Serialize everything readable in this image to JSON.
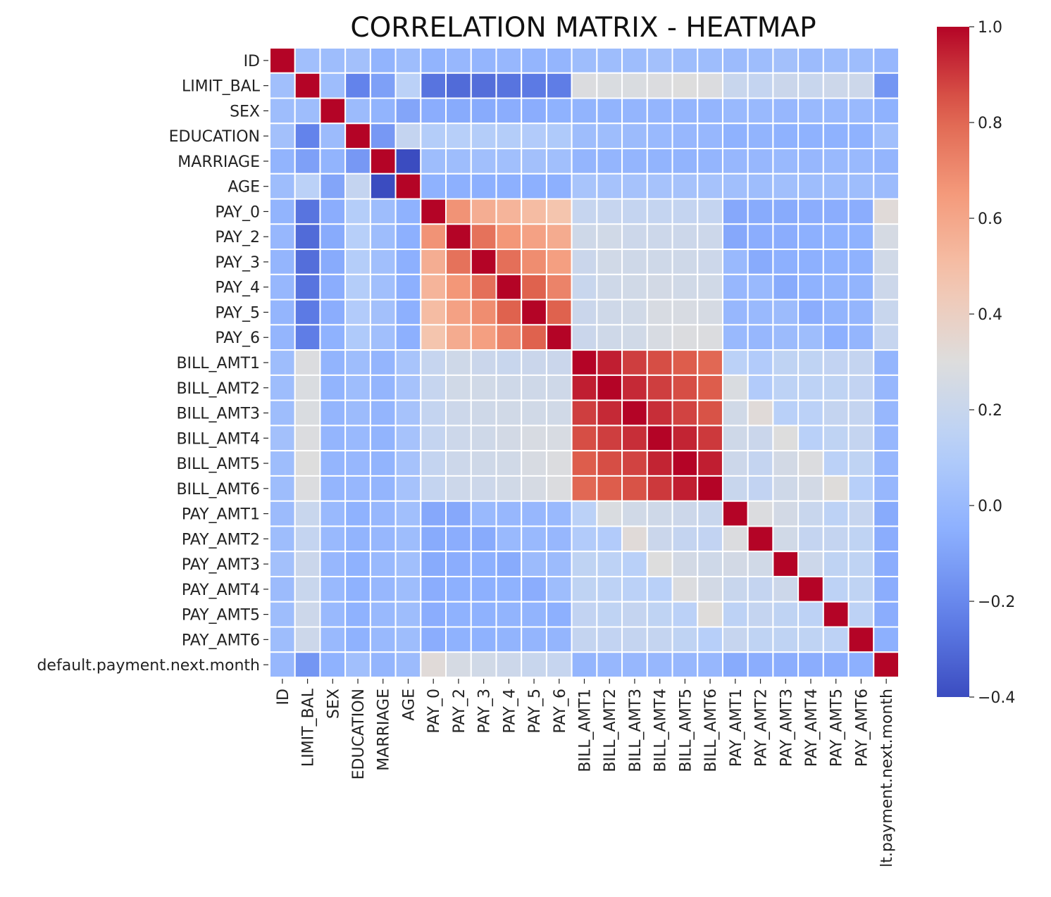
{
  "chart_data": {
    "type": "heatmap",
    "title": "CORRELATION MATRIX - HEATMAP",
    "colormap": "coolwarm",
    "labels": [
      "ID",
      "LIMIT_BAL",
      "SEX",
      "EDUCATION",
      "MARRIAGE",
      "AGE",
      "PAY_0",
      "PAY_2",
      "PAY_3",
      "PAY_4",
      "PAY_5",
      "PAY_6",
      "BILL_AMT1",
      "BILL_AMT2",
      "BILL_AMT3",
      "BILL_AMT4",
      "BILL_AMT5",
      "BILL_AMT6",
      "PAY_AMT1",
      "PAY_AMT2",
      "PAY_AMT3",
      "PAY_AMT4",
      "PAY_AMT5",
      "PAY_AMT6",
      "default.payment.next.month"
    ],
    "x_tick_labels_visible": [
      "ID",
      "LIMIT_BAL",
      "SEX",
      "EDUCATION",
      "MARRIAGE",
      "AGE",
      "PAY_0",
      "PAY_2",
      "PAY_3",
      "PAY_4",
      "PAY_5",
      "PAY_6",
      "BILL_AMT1",
      "BILL_AMT2",
      "BILL_AMT3",
      "BILL_AMT4",
      "BILL_AMT5",
      "BILL_AMT6",
      "PAY_AMT1",
      "PAY_AMT2",
      "PAY_AMT3",
      "PAY_AMT4",
      "PAY_AMT5",
      "PAY_AMT6",
      "lt.payment.next.month"
    ],
    "vmin": -0.4,
    "vmax": 1.0,
    "colorbar_ticks": [
      "1.0",
      "0.8",
      "0.6",
      "0.4",
      "0.2",
      "0.0",
      "−0.2",
      "−0.4"
    ],
    "colorbar_tick_values": [
      1.0,
      0.8,
      0.6,
      0.4,
      0.2,
      0.0,
      -0.2,
      -0.4
    ],
    "matrix": [
      [
        1.0,
        0.03,
        0.02,
        0.04,
        -0.03,
        0.02,
        -0.03,
        -0.01,
        -0.02,
        -0.01,
        -0.02,
        -0.02,
        0.02,
        0.02,
        0.02,
        0.04,
        0.02,
        0.02,
        0.01,
        0.02,
        0.04,
        0.01,
        0.02,
        0.02,
        -0.01
      ],
      [
        0.03,
        1.0,
        0.02,
        -0.22,
        -0.11,
        0.14,
        -0.27,
        -0.3,
        -0.29,
        -0.27,
        -0.25,
        -0.24,
        0.29,
        0.28,
        0.28,
        0.29,
        0.3,
        0.29,
        0.2,
        0.18,
        0.21,
        0.2,
        0.22,
        0.22,
        -0.15
      ],
      [
        0.02,
        0.02,
        1.0,
        0.01,
        -0.03,
        -0.09,
        -0.06,
        -0.07,
        -0.07,
        -0.06,
        -0.06,
        -0.04,
        -0.03,
        -0.03,
        -0.02,
        -0.02,
        -0.02,
        -0.02,
        0.0,
        0.0,
        -0.01,
        0.0,
        0.0,
        0.0,
        -0.04
      ],
      [
        0.04,
        -0.22,
        0.01,
        1.0,
        -0.14,
        0.18,
        0.11,
        0.12,
        0.11,
        0.11,
        0.1,
        0.09,
        0.02,
        0.02,
        0.01,
        0.0,
        -0.01,
        -0.01,
        -0.04,
        -0.03,
        -0.04,
        -0.04,
        -0.04,
        -0.04,
        0.03
      ],
      [
        -0.03,
        -0.11,
        -0.03,
        -0.14,
        1.0,
        -0.41,
        0.02,
        0.02,
        0.03,
        0.03,
        0.04,
        0.03,
        -0.02,
        -0.02,
        -0.02,
        -0.03,
        -0.03,
        -0.02,
        -0.01,
        -0.01,
        0.0,
        -0.01,
        0.0,
        0.0,
        -0.02
      ],
      [
        0.02,
        0.14,
        -0.09,
        0.18,
        -0.41,
        1.0,
        -0.04,
        -0.05,
        -0.05,
        -0.05,
        -0.05,
        -0.05,
        0.06,
        0.05,
        0.05,
        0.05,
        0.05,
        0.05,
        0.03,
        0.02,
        0.03,
        0.02,
        0.02,
        0.02,
        0.01
      ],
      [
        -0.03,
        -0.27,
        -0.06,
        0.11,
        0.02,
        -0.04,
        1.0,
        0.67,
        0.57,
        0.54,
        0.51,
        0.47,
        0.19,
        0.19,
        0.18,
        0.18,
        0.18,
        0.18,
        -0.08,
        -0.07,
        -0.07,
        -0.06,
        -0.06,
        -0.06,
        0.32
      ],
      [
        -0.01,
        -0.3,
        -0.07,
        0.12,
        0.02,
        -0.05,
        0.67,
        1.0,
        0.77,
        0.66,
        0.62,
        0.58,
        0.23,
        0.24,
        0.22,
        0.22,
        0.22,
        0.22,
        -0.08,
        -0.06,
        -0.06,
        -0.05,
        -0.04,
        -0.04,
        0.26
      ],
      [
        -0.02,
        -0.29,
        -0.07,
        0.11,
        0.03,
        -0.05,
        0.57,
        0.77,
        1.0,
        0.78,
        0.69,
        0.63,
        0.21,
        0.24,
        0.23,
        0.23,
        0.23,
        0.22,
        0.0,
        -0.07,
        -0.05,
        -0.05,
        -0.04,
        -0.04,
        0.24
      ],
      [
        -0.01,
        -0.27,
        -0.06,
        0.11,
        0.03,
        -0.05,
        0.54,
        0.66,
        0.78,
        1.0,
        0.82,
        0.72,
        0.2,
        0.23,
        0.24,
        0.25,
        0.24,
        0.24,
        -0.01,
        -0.0,
        -0.07,
        -0.04,
        -0.03,
        -0.03,
        0.22
      ],
      [
        -0.02,
        -0.25,
        -0.06,
        0.1,
        0.04,
        -0.05,
        0.51,
        0.62,
        0.69,
        0.82,
        1.0,
        0.82,
        0.21,
        0.23,
        0.24,
        0.27,
        0.27,
        0.26,
        -0.01,
        -0.0,
        0.01,
        -0.06,
        -0.03,
        -0.02,
        0.2
      ],
      [
        -0.02,
        -0.24,
        -0.04,
        0.09,
        0.03,
        -0.05,
        0.47,
        0.58,
        0.63,
        0.72,
        0.82,
        1.0,
        0.21,
        0.23,
        0.24,
        0.27,
        0.29,
        0.29,
        -0.0,
        -0.01,
        0.01,
        0.02,
        -0.05,
        -0.02,
        0.19
      ],
      [
        0.02,
        0.29,
        -0.03,
        0.02,
        -0.02,
        0.06,
        0.19,
        0.23,
        0.21,
        0.2,
        0.21,
        0.21,
        1.0,
        0.95,
        0.89,
        0.86,
        0.83,
        0.8,
        0.14,
        0.1,
        0.16,
        0.16,
        0.17,
        0.18,
        -0.02
      ],
      [
        0.02,
        0.28,
        -0.03,
        0.02,
        -0.02,
        0.05,
        0.19,
        0.24,
        0.24,
        0.23,
        0.23,
        0.23,
        0.95,
        1.0,
        0.93,
        0.89,
        0.86,
        0.83,
        0.28,
        0.1,
        0.15,
        0.15,
        0.16,
        0.17,
        -0.01
      ],
      [
        0.02,
        0.28,
        -0.02,
        0.01,
        -0.02,
        0.05,
        0.18,
        0.22,
        0.23,
        0.24,
        0.24,
        0.24,
        0.89,
        0.93,
        1.0,
        0.92,
        0.88,
        0.85,
        0.24,
        0.32,
        0.13,
        0.14,
        0.18,
        0.18,
        -0.01
      ],
      [
        0.04,
        0.29,
        -0.02,
        0.0,
        -0.03,
        0.05,
        0.18,
        0.22,
        0.23,
        0.25,
        0.27,
        0.27,
        0.86,
        0.89,
        0.92,
        1.0,
        0.94,
        0.9,
        0.23,
        0.21,
        0.3,
        0.13,
        0.16,
        0.18,
        -0.01
      ],
      [
        0.02,
        0.3,
        -0.02,
        -0.01,
        -0.03,
        0.05,
        0.18,
        0.22,
        0.23,
        0.24,
        0.27,
        0.29,
        0.83,
        0.86,
        0.88,
        0.94,
        1.0,
        0.95,
        0.22,
        0.18,
        0.25,
        0.29,
        0.14,
        0.16,
        -0.01
      ],
      [
        0.02,
        0.29,
        -0.02,
        -0.01,
        -0.02,
        0.05,
        0.18,
        0.22,
        0.22,
        0.24,
        0.26,
        0.29,
        0.8,
        0.83,
        0.85,
        0.9,
        0.95,
        1.0,
        0.2,
        0.17,
        0.23,
        0.25,
        0.31,
        0.12,
        -0.01
      ],
      [
        0.01,
        0.2,
        0.0,
        -0.04,
        -0.01,
        0.03,
        -0.08,
        -0.08,
        0.0,
        -0.01,
        -0.01,
        -0.0,
        0.14,
        0.28,
        0.24,
        0.23,
        0.22,
        0.2,
        1.0,
        0.29,
        0.25,
        0.2,
        0.15,
        0.19,
        -0.07
      ],
      [
        0.02,
        0.18,
        0.0,
        -0.03,
        -0.01,
        0.02,
        -0.07,
        -0.06,
        -0.07,
        -0.0,
        -0.0,
        -0.01,
        0.1,
        0.1,
        0.32,
        0.21,
        0.18,
        0.17,
        0.29,
        1.0,
        0.24,
        0.18,
        0.18,
        0.16,
        -0.06
      ],
      [
        0.04,
        0.21,
        -0.01,
        -0.04,
        0.0,
        0.03,
        -0.07,
        -0.06,
        -0.05,
        -0.07,
        0.01,
        0.01,
        0.16,
        0.15,
        0.13,
        0.3,
        0.25,
        0.23,
        0.25,
        0.24,
        1.0,
        0.22,
        0.16,
        0.16,
        -0.06
      ],
      [
        0.01,
        0.2,
        0.0,
        -0.04,
        -0.01,
        0.02,
        -0.06,
        -0.05,
        -0.05,
        -0.04,
        -0.06,
        0.02,
        0.16,
        0.15,
        0.14,
        0.13,
        0.29,
        0.25,
        0.2,
        0.18,
        0.22,
        1.0,
        0.15,
        0.16,
        -0.06
      ],
      [
        0.02,
        0.22,
        0.0,
        -0.04,
        0.0,
        0.02,
        -0.06,
        -0.04,
        -0.04,
        -0.03,
        -0.03,
        -0.05,
        0.17,
        0.16,
        0.18,
        0.16,
        0.14,
        0.31,
        0.15,
        0.18,
        0.16,
        0.15,
        1.0,
        0.15,
        -0.06
      ],
      [
        0.02,
        0.22,
        0.0,
        -0.04,
        0.0,
        0.02,
        -0.06,
        -0.04,
        -0.04,
        -0.03,
        -0.02,
        -0.02,
        0.18,
        0.17,
        0.18,
        0.18,
        0.16,
        0.12,
        0.19,
        0.16,
        0.16,
        0.16,
        0.15,
        1.0,
        -0.05
      ],
      [
        -0.01,
        -0.15,
        -0.04,
        0.03,
        -0.02,
        0.01,
        0.32,
        0.26,
        0.24,
        0.22,
        0.2,
        0.19,
        -0.02,
        -0.01,
        -0.01,
        -0.01,
        -0.01,
        -0.01,
        -0.07,
        -0.06,
        -0.06,
        -0.06,
        -0.06,
        -0.05,
        1.0
      ]
    ]
  }
}
